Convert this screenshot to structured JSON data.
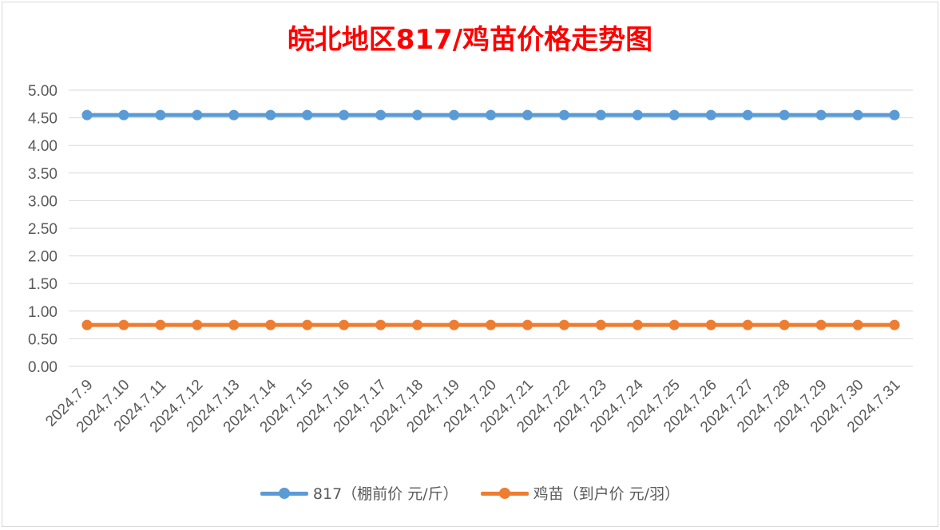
{
  "chart_data": {
    "type": "line",
    "title": "皖北地区817/鸡苗价格走势图",
    "xlabel": "",
    "ylabel": "",
    "categories": [
      "2024.7.9",
      "2024.7.10",
      "2024.7.11",
      "2024.7.12",
      "2024.7.13",
      "2024.7.14",
      "2024.7.15",
      "2024.7.16",
      "2024.7.17",
      "2024.7.18",
      "2024.7.19",
      "2024.7.20",
      "2024.7.21",
      "2024.7.22",
      "2024.7.23",
      "2024.7.24",
      "2024.7.25",
      "2024.7.26",
      "2024.7.27",
      "2024.7.28",
      "2024.7.29",
      "2024.7.30",
      "2024.7.31"
    ],
    "ylim": [
      0,
      5
    ],
    "yticks": [
      "0.00",
      "0.50",
      "1.00",
      "1.50",
      "2.00",
      "2.50",
      "3.00",
      "3.50",
      "4.00",
      "4.50",
      "5.00"
    ],
    "grid": true,
    "legend_position": "bottom",
    "series": [
      {
        "name": "817（棚前价 元/斤）",
        "color": "#5b9bd5",
        "values": [
          4.55,
          4.55,
          4.55,
          4.55,
          4.55,
          4.55,
          4.55,
          4.55,
          4.55,
          4.55,
          4.55,
          4.55,
          4.55,
          4.55,
          4.55,
          4.55,
          4.55,
          4.55,
          4.55,
          4.55,
          4.55,
          4.55,
          4.55
        ]
      },
      {
        "name": "鸡苗（到户价 元/羽）",
        "color": "#ed7d31",
        "values": [
          0.75,
          0.75,
          0.75,
          0.75,
          0.75,
          0.75,
          0.75,
          0.75,
          0.75,
          0.75,
          0.75,
          0.75,
          0.75,
          0.75,
          0.75,
          0.75,
          0.75,
          0.75,
          0.75,
          0.75,
          0.75,
          0.75,
          0.75
        ]
      }
    ]
  }
}
